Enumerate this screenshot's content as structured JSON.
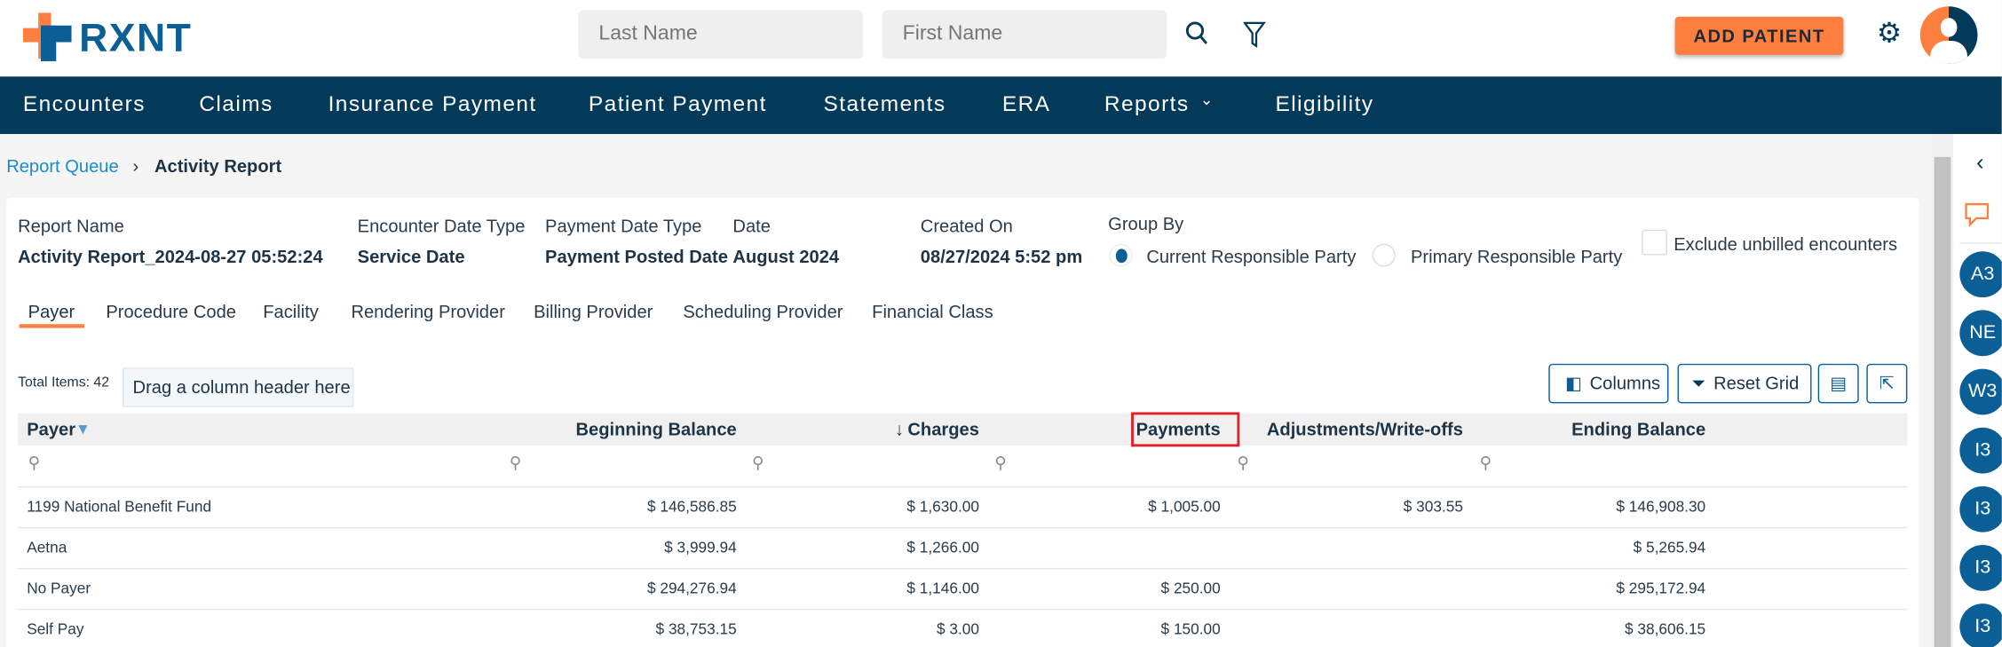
{
  "header": {
    "logo": "RXNT",
    "last_name_placeholder": "Last Name",
    "first_name_placeholder": "First Name",
    "add_patient": "ADD PATIENT",
    "icons": [
      "search-icon",
      "filter-icon",
      "gear-icon",
      "avatar"
    ]
  },
  "nav": [
    "Encounters",
    "Claims",
    "Insurance Payment",
    "Patient Payment",
    "Statements",
    "ERA",
    "Reports",
    "Eligibility"
  ],
  "breadcrumb": {
    "parent": "Report Queue",
    "current": "Activity Report"
  },
  "report": {
    "fields": [
      {
        "label": "Report Name",
        "value": "Activity Report_2024-08-27 05:52:24"
      },
      {
        "label": "Encounter Date Type",
        "value": "Service Date"
      },
      {
        "label": "Payment Date Type",
        "value": "Payment Posted Date"
      },
      {
        "label": "Date",
        "value": "August 2024"
      },
      {
        "label": "Created On",
        "value": "08/27/2024 5:52 pm"
      }
    ],
    "group_by": {
      "label": "Group By",
      "options": [
        "Current Responsible Party",
        "Primary Responsible Party"
      ],
      "selected": "Current Responsible Party"
    },
    "exclude_unbilled": {
      "label": "Exclude unbilled encounters",
      "checked": false
    }
  },
  "tabs": [
    "Payer",
    "Procedure Code",
    "Facility",
    "Rendering Provider",
    "Billing Provider",
    "Scheduling Provider",
    "Financial Class"
  ],
  "active_tab": "Payer",
  "grid": {
    "total_items": "Total Items: 42",
    "drag_hint": "Drag a column header here",
    "columns_btn": "Columns",
    "reset_btn": "Reset Grid",
    "headers": [
      "Payer",
      "Beginning Balance",
      "Charges",
      "Payments",
      "Adjustments/Write-offs",
      "Ending Balance"
    ],
    "sort_indicator": "↓",
    "rows": [
      [
        "1199 National Benefit Fund",
        "$ 146,586.85",
        "$ 1,630.00",
        "$ 1,005.00",
        "$ 303.55",
        "$ 146,908.30"
      ],
      [
        "Aetna",
        "$ 3,999.94",
        "$ 1,266.00",
        "",
        "",
        "$ 5,265.94"
      ],
      [
        "No Payer",
        "$ 294,276.94",
        "$ 1,146.00",
        "$ 250.00",
        "",
        "$ 295,172.94"
      ],
      [
        "Self Pay",
        "$ 38,753.15",
        "$ 3.00",
        "$ 150.00",
        "",
        "$ 38,606.15"
      ]
    ]
  },
  "sidebar": {
    "badges": [
      "A3",
      "NE",
      "W3",
      "I3",
      "I3",
      "I3",
      "I3"
    ]
  },
  "colors": {
    "brand": "#0b5f97",
    "nav": "#033a5a",
    "accent": "#ff7f3f",
    "highlight": "#e0202a"
  }
}
